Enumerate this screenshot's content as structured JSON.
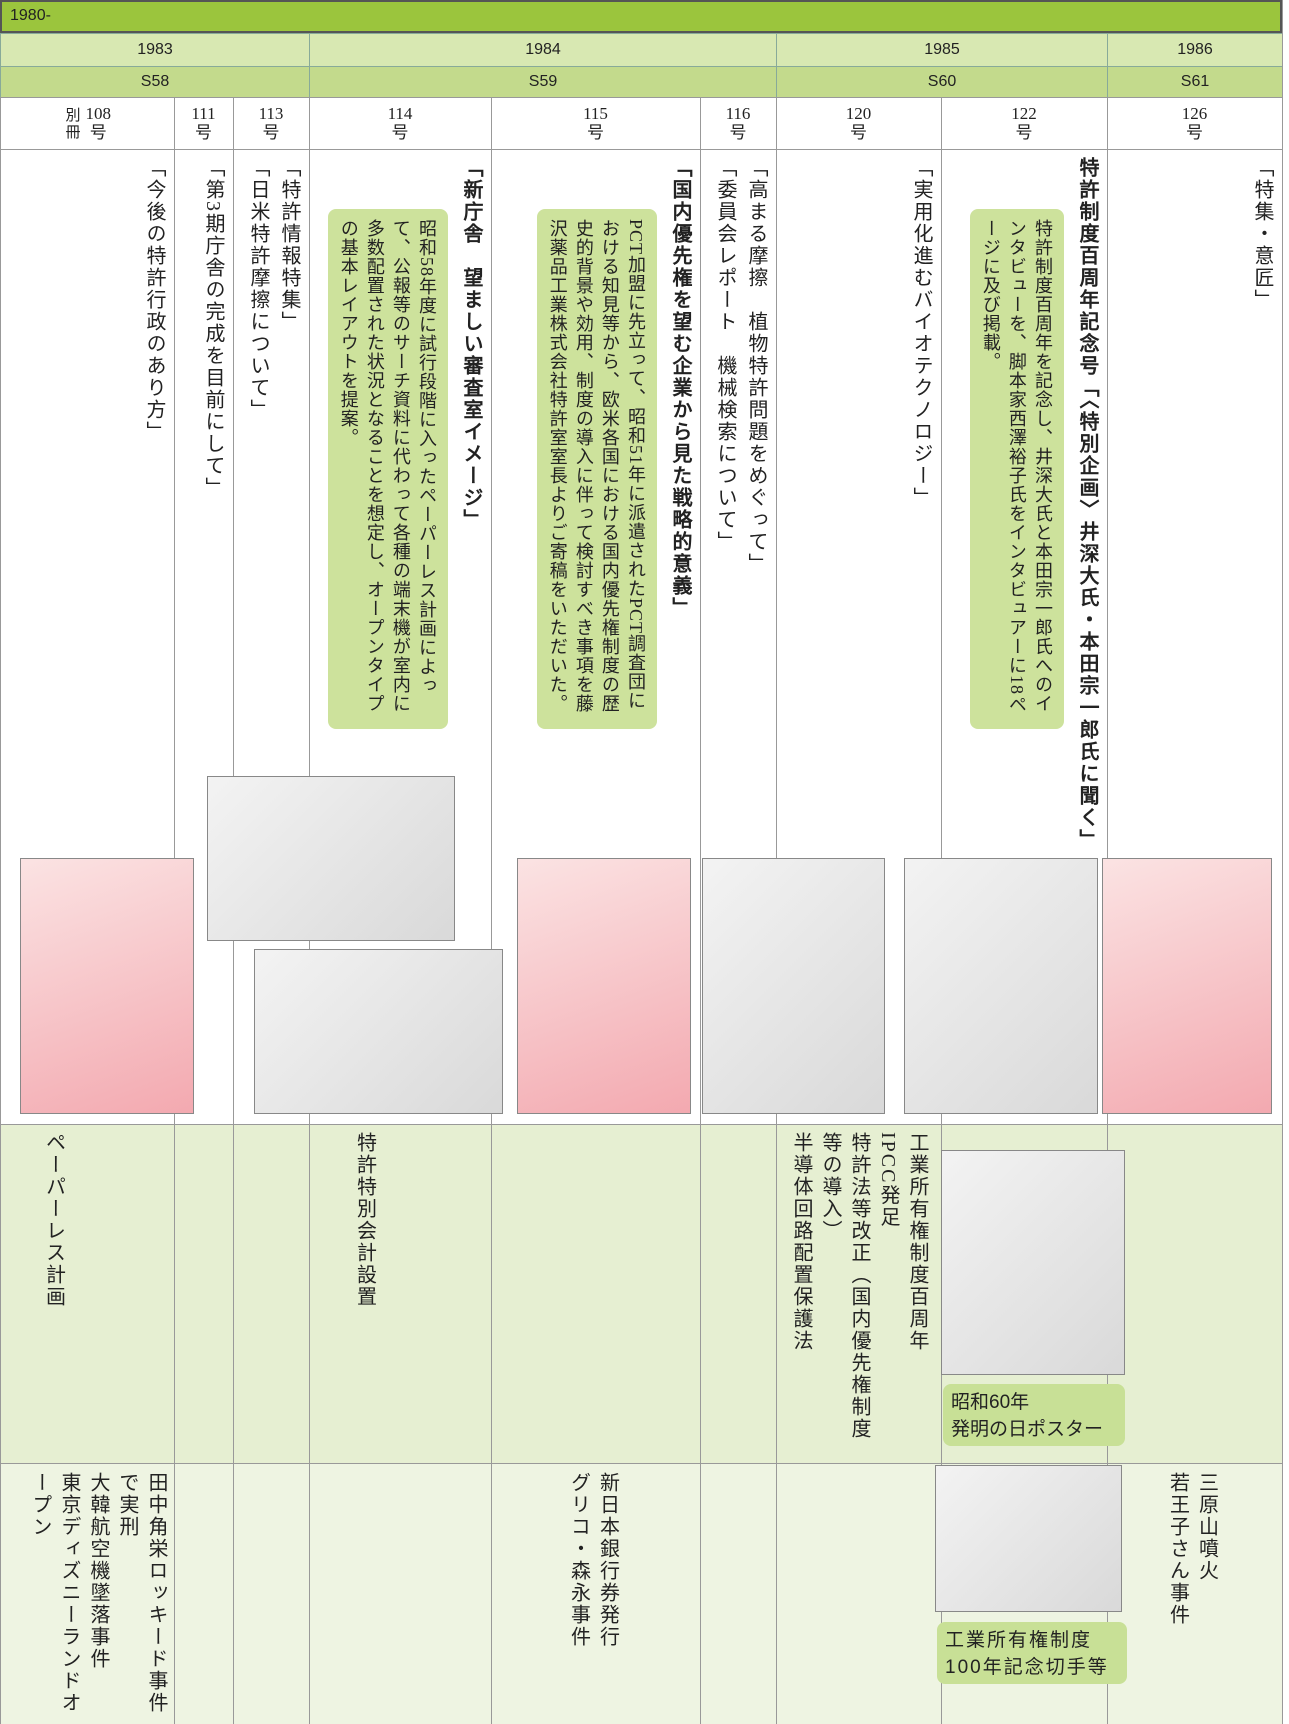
{
  "header": {
    "era": "1980-",
    "years": [
      "1983",
      "1984",
      "1985",
      "1986"
    ],
    "showa": [
      "S58",
      "S59",
      "S60",
      "S61"
    ]
  },
  "columns": [
    {
      "issue": {
        "prefix": "別冊",
        "number": "108",
        "suffix": "号"
      },
      "articles": [
        {
          "text": "「今後の特許行政のあり方」",
          "bold": false
        }
      ],
      "events": [
        "ペーパーレス計画"
      ],
      "society": [
        "田中角栄ロッキード事件で実刑",
        "大韓航空機墜落事件",
        "東京ディズニーランドオープン"
      ]
    },
    {
      "issue": {
        "number": "111",
        "suffix": "号"
      },
      "articles": [
        {
          "text": "「第3期庁舎の完成を目前にして」",
          "bold": false
        }
      ],
      "events": [],
      "society": []
    },
    {
      "issue": {
        "number": "113",
        "suffix": "号"
      },
      "articles": [
        {
          "text": "「特許情報特集」",
          "bold": false
        },
        {
          "text": "「日米特許摩擦について」",
          "bold": false
        }
      ],
      "events": [],
      "society": []
    },
    {
      "issue": {
        "number": "114",
        "suffix": "号"
      },
      "articles": [
        {
          "text": "「新庁舎　望ましい審査室イメージ」",
          "bold": true
        }
      ],
      "note": "昭和58年度に試行段階に入ったペーパーレス計画によって、公報等のサーチ資料に代わって各種の端末機が室内に多数配置された状況となることを想定し、オープンタイプの基本レイアウトを提案。",
      "events": [
        "特許特別会計設置"
      ],
      "society": []
    },
    {
      "issue": {
        "number": "115",
        "suffix": "号"
      },
      "articles": [
        {
          "text": "「国内優先権を望む企業から見た戦略的意義」",
          "bold": true
        }
      ],
      "note": "PCT加盟に先立って、昭和51年に派遣されたPCT調査団における知見等から、欧米各国における国内優先権制度の歴史的背景や効用、制度の導入に伴って検討すべき事項を藤沢薬品工業株式会社特許室室長よりご寄稿をいただいた。",
      "events": [],
      "society": [
        "新日本銀行券発行",
        "グリコ・森永事件"
      ]
    },
    {
      "issue": {
        "number": "116",
        "suffix": "号"
      },
      "articles": [
        {
          "text": "「高まる摩擦　植物特許問題をめぐって」",
          "bold": false
        },
        {
          "text": "「委員会レポート　機械検索について」",
          "bold": false
        }
      ],
      "events": [],
      "society": []
    },
    {
      "issue": {
        "number": "120",
        "suffix": "号"
      },
      "articles": [
        {
          "text": "「実用化進むバイオテクノロジー」",
          "bold": false
        }
      ],
      "events": [
        "工業所有権制度百周年",
        "IPCC発足",
        "特許法等改正（国内優先権制度等の導入）",
        "半導体回路配置保護法"
      ],
      "society": []
    },
    {
      "issue": {
        "number": "122",
        "suffix": "号"
      },
      "articles": [
        {
          "text": "特許制度百周年記念号「〈特別企画〉井深大氏・本田宗一郎氏に聞く」",
          "bold": true
        }
      ],
      "note": "特許制度百周年を記念し、井深大氏と本田宗一郎氏へのインタビューを、脚本家西澤裕子氏をインタビュアーに18ページに及び掲載。",
      "events": [],
      "society": [],
      "event_caption": [
        "昭和60年",
        "発明の日ポスター"
      ],
      "society_caption": [
        "工業所有権制度",
        "100年記念切手等"
      ]
    },
    {
      "issue": {
        "number": "126",
        "suffix": "号"
      },
      "articles": [
        {
          "text": "「特集・意匠」",
          "bold": false
        }
      ],
      "events": [],
      "society": [
        "三原山噴火",
        "若王子さん事件"
      ]
    }
  ]
}
